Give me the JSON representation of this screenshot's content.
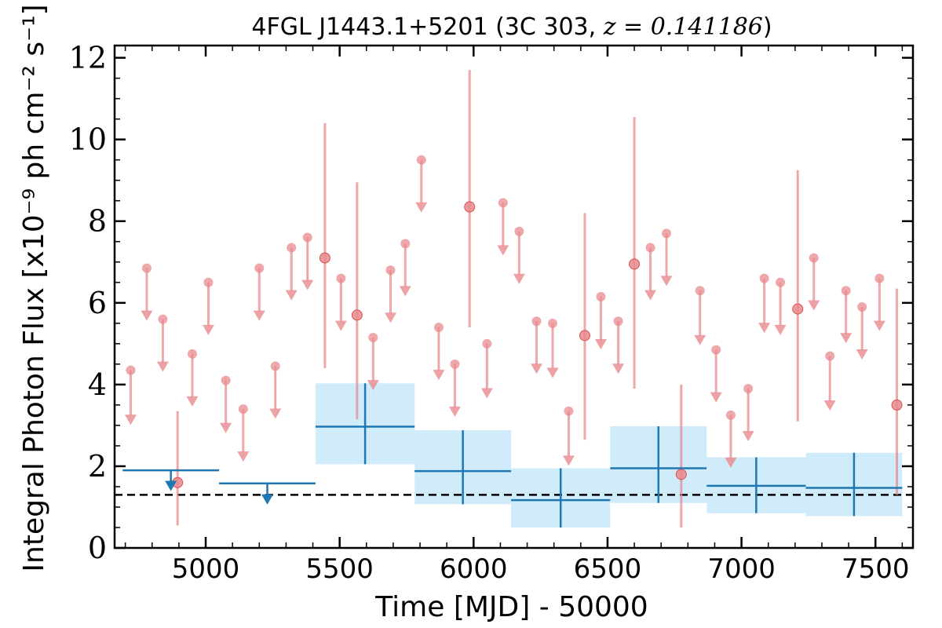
{
  "chart_data": {
    "type": "scatter",
    "title": "4FGL J1443.1+5201 (3C 303, z = 0.141186)",
    "title_parts": {
      "prefix": "4FGL J1443.1+5201 (3C 303, ",
      "math": "z = 0.141186",
      "suffix": ")"
    },
    "xlabel": "Time [MJD] - 50000",
    "ylabel": "Integral Photon Flux [x10⁻⁹ ph cm⁻² s⁻¹]",
    "xlim": [
      4660,
      7640
    ],
    "ylim": [
      0,
      12.3
    ],
    "xticks": [
      5000,
      5500,
      6000,
      6500,
      7000,
      7500
    ],
    "yticks": [
      0,
      2,
      4,
      6,
      8,
      10,
      12
    ],
    "grid": false,
    "baseline": {
      "value": 1.3,
      "style": "dashed",
      "color": "#000000"
    },
    "colors": {
      "detail": "#e8898d",
      "binned": "#1f77b4",
      "binned_band": "#d0ecfb"
    },
    "series": [
      {
        "marker": "circle",
        "color": "#e8898d",
        "detections": [
          {
            "x": 4895,
            "y": 1.6,
            "ylo": 0.55,
            "yhi": 3.35
          },
          {
            "x": 5445,
            "y": 7.1,
            "ylo": 4.4,
            "yhi": 10.4
          },
          {
            "x": 5565,
            "y": 5.7,
            "ylo": 3.15,
            "yhi": 8.95
          },
          {
            "x": 5985,
            "y": 8.35,
            "ylo": 5.4,
            "yhi": 11.7
          },
          {
            "x": 6415,
            "y": 5.2,
            "ylo": 2.65,
            "yhi": 8.2
          },
          {
            "x": 6600,
            "y": 6.95,
            "ylo": 3.9,
            "yhi": 10.55
          },
          {
            "x": 6775,
            "y": 1.8,
            "ylo": 0.5,
            "yhi": 4.0
          },
          {
            "x": 7210,
            "y": 5.85,
            "ylo": 3.1,
            "yhi": 9.25
          },
          {
            "x": 7580,
            "y": 3.5,
            "ylo": 1.3,
            "yhi": 6.35
          }
        ],
        "upper_limits": [
          {
            "x": 4720,
            "y": 4.35,
            "to": 3.05
          },
          {
            "x": 4780,
            "y": 6.85,
            "to": 5.6
          },
          {
            "x": 4840,
            "y": 5.6,
            "to": 4.35
          },
          {
            "x": 4950,
            "y": 4.75,
            "to": 3.5
          },
          {
            "x": 5010,
            "y": 6.5,
            "to": 5.25
          },
          {
            "x": 5075,
            "y": 4.1,
            "to": 2.85
          },
          {
            "x": 5140,
            "y": 3.4,
            "to": 2.15
          },
          {
            "x": 5200,
            "y": 6.85,
            "to": 5.6
          },
          {
            "x": 5260,
            "y": 4.45,
            "to": 3.2
          },
          {
            "x": 5320,
            "y": 7.35,
            "to": 6.1
          },
          {
            "x": 5380,
            "y": 7.6,
            "to": 6.35
          },
          {
            "x": 5505,
            "y": 6.6,
            "to": 5.35
          },
          {
            "x": 5625,
            "y": 5.15,
            "to": 3.9
          },
          {
            "x": 5690,
            "y": 6.8,
            "to": 5.55
          },
          {
            "x": 5745,
            "y": 7.45,
            "to": 6.2
          },
          {
            "x": 5805,
            "y": 9.5,
            "to": 8.25
          },
          {
            "x": 5870,
            "y": 5.4,
            "to": 4.15
          },
          {
            "x": 5930,
            "y": 4.5,
            "to": 3.25
          },
          {
            "x": 6050,
            "y": 5.0,
            "to": 3.7
          },
          {
            "x": 6110,
            "y": 8.45,
            "to": 7.2
          },
          {
            "x": 6170,
            "y": 7.75,
            "to": 6.5
          },
          {
            "x": 6235,
            "y": 5.55,
            "to": 4.3
          },
          {
            "x": 6295,
            "y": 5.5,
            "to": 4.2
          },
          {
            "x": 6355,
            "y": 3.35,
            "to": 2.05
          },
          {
            "x": 6475,
            "y": 6.15,
            "to": 4.9
          },
          {
            "x": 6540,
            "y": 5.55,
            "to": 4.3
          },
          {
            "x": 6660,
            "y": 7.35,
            "to": 6.1
          },
          {
            "x": 6720,
            "y": 7.7,
            "to": 6.45
          },
          {
            "x": 6845,
            "y": 6.3,
            "to": 5.0
          },
          {
            "x": 6905,
            "y": 4.85,
            "to": 3.6
          },
          {
            "x": 6960,
            "y": 3.25,
            "to": 2.0
          },
          {
            "x": 7025,
            "y": 3.9,
            "to": 2.65
          },
          {
            "x": 7085,
            "y": 6.6,
            "to": 5.3
          },
          {
            "x": 7145,
            "y": 6.5,
            "to": 5.25
          },
          {
            "x": 7270,
            "y": 7.1,
            "to": 5.85
          },
          {
            "x": 7330,
            "y": 4.7,
            "to": 3.4
          },
          {
            "x": 7390,
            "y": 6.3,
            "to": 5.05
          },
          {
            "x": 7450,
            "y": 5.9,
            "to": 4.65
          },
          {
            "x": 7515,
            "y": 6.6,
            "to": 5.35
          }
        ]
      },
      {
        "marker": "crossbar",
        "color": "#1f77b4",
        "bins": [
          {
            "x0": 4690,
            "x1": 5050,
            "upper_limit": 1.9,
            "to": 1.45,
            "arrow_x": 4870
          },
          {
            "x0": 5050,
            "x1": 5410,
            "upper_limit": 1.58,
            "to": 1.12,
            "arrow_x": 5230
          },
          {
            "x0": 5410,
            "x1": 5780,
            "y": 2.97,
            "ylo": 2.05,
            "yhi": 4.03,
            "xc": 5595
          },
          {
            "x0": 5780,
            "x1": 6140,
            "y": 1.88,
            "ylo": 1.07,
            "yhi": 2.88,
            "xc": 5960
          },
          {
            "x0": 6140,
            "x1": 6510,
            "y": 1.17,
            "ylo": 0.5,
            "yhi": 1.95,
            "xc": 6325
          },
          {
            "x0": 6510,
            "x1": 6870,
            "y": 1.95,
            "ylo": 1.1,
            "yhi": 2.98,
            "xc": 6690
          },
          {
            "x0": 6870,
            "x1": 7240,
            "y": 1.52,
            "ylo": 0.85,
            "yhi": 2.22,
            "xc": 7055
          },
          {
            "x0": 7240,
            "x1": 7600,
            "y": 1.47,
            "ylo": 0.78,
            "yhi": 2.33,
            "xc": 7420
          }
        ]
      }
    ]
  }
}
